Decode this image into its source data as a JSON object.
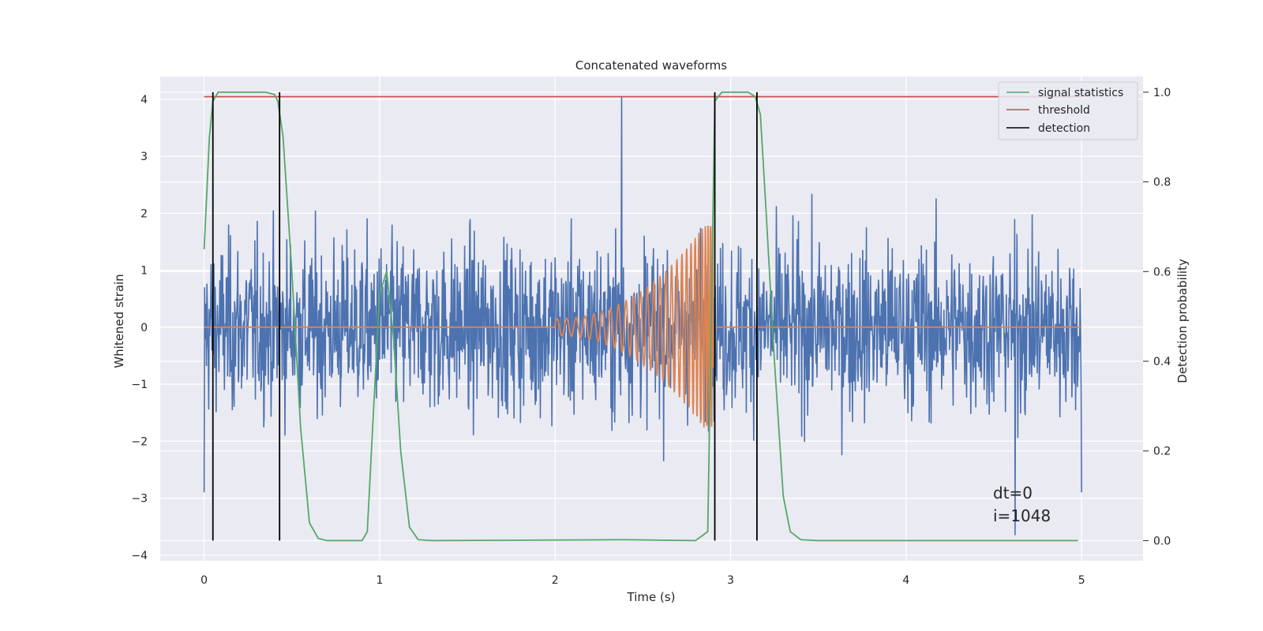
{
  "chart_data": {
    "type": "line",
    "title": "Concatenated waveforms",
    "xlabel": "Time (s)",
    "ylabel": "Whitened strain",
    "y2label": "Detection probability",
    "xlim": [
      -0.25,
      5.35
    ],
    "ylim": [
      -4.1,
      4.4
    ],
    "y2lim": [
      -0.045,
      1.035
    ],
    "x_ticks": [
      0,
      1,
      2,
      3,
      4,
      5
    ],
    "y_ticks": [
      -4,
      -3,
      -2,
      -1,
      0,
      1,
      2,
      3,
      4
    ],
    "y2_ticks": [
      0.0,
      0.2,
      0.4,
      0.6,
      0.8,
      1.0
    ],
    "x_tick_labels": [
      "0",
      "1",
      "2",
      "3",
      "4",
      "5"
    ],
    "y_tick_labels": [
      "−4",
      "−3",
      "−2",
      "−1",
      "0",
      "1",
      "2",
      "3",
      "4"
    ],
    "y2_tick_labels": [
      "0.0",
      "0.2",
      "0.4",
      "0.6",
      "0.8",
      "1.0"
    ],
    "grid": true,
    "legend_position": "top-right",
    "legend": [
      {
        "label": "signal statistics",
        "color": "#55a868"
      },
      {
        "label": "threshold",
        "color": "#c44e52"
      },
      {
        "label": "detection",
        "color": "#000000"
      }
    ],
    "series": [
      {
        "role": "whitened-strain-noise",
        "color": "#4c72b0",
        "axis": "left",
        "x_range": [
          0,
          5
        ],
        "amplitude_envelope": 2.9,
        "spikes": [
          {
            "x": 2.38,
            "y": 4.05
          },
          {
            "x": 4.62,
            "y": -3.65
          }
        ]
      },
      {
        "role": "injected-chirp",
        "color": "#dd8452",
        "axis": "left",
        "x_range": [
          0,
          5
        ],
        "chirp_start": 2.0,
        "chirp_end": 2.9,
        "start_amplitude": 0.15,
        "peak_amplitude": 2.0
      },
      {
        "name": "signal statistics",
        "color": "#55a868",
        "axis": "right",
        "x": [
          0,
          0.03,
          0.05,
          0.08,
          0.12,
          0.35,
          0.4,
          0.42,
          0.45,
          0.5,
          0.55,
          0.6,
          0.65,
          0.7,
          0.9,
          0.93,
          0.96,
          1.0,
          1.04,
          1.08,
          1.12,
          1.17,
          1.22,
          1.3,
          2.4,
          2.8,
          2.87,
          2.89,
          2.91,
          2.95,
          3.1,
          3.14,
          3.17,
          3.2,
          3.25,
          3.3,
          3.34,
          3.4,
          3.5,
          4.8,
          4.98
        ],
        "y": [
          0.65,
          0.9,
          0.98,
          1.0,
          1.0,
          1.0,
          0.995,
          0.98,
          0.9,
          0.6,
          0.25,
          0.04,
          0.005,
          0.0,
          0.0,
          0.02,
          0.25,
          0.55,
          0.6,
          0.45,
          0.2,
          0.03,
          0.002,
          0.0,
          0.002,
          0.0,
          0.02,
          0.5,
          0.98,
          1.0,
          1.0,
          0.99,
          0.95,
          0.75,
          0.4,
          0.1,
          0.02,
          0.002,
          0.0,
          0.0,
          0.0
        ]
      },
      {
        "name": "threshold",
        "color": "#c44e52",
        "axis": "right",
        "x": [
          0,
          5
        ],
        "y": [
          0.99,
          0.99
        ]
      },
      {
        "name": "detection",
        "color": "#000000",
        "type": "vlines",
        "axis": "right",
        "x": [
          0.05,
          0.43,
          2.91,
          3.15
        ],
        "ymin": 0.0,
        "ymax": 1.0
      }
    ],
    "annotations": [
      "dt=0",
      "i=1048"
    ]
  }
}
